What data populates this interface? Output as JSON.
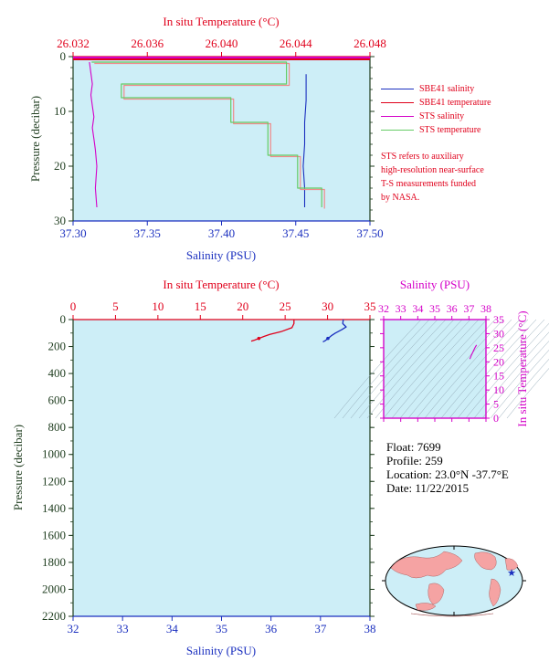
{
  "chart_data": [
    {
      "type": "line",
      "title": "",
      "top_axis_label": "In situ Temperature (°C)",
      "bottom_axis_label": "Salinity (PSU)",
      "ylabel": "Pressure (decibar)",
      "xlim_salinity": [
        37.3,
        37.5
      ],
      "xlim_temperature": [
        26.032,
        26.048
      ],
      "ylim": [
        30,
        0
      ],
      "y_reversed": true,
      "salinity_ticks": [
        "37.30",
        "37.35",
        "37.40",
        "37.45",
        "37.50"
      ],
      "temperature_ticks": [
        "26.032",
        "26.036",
        "26.040",
        "26.044",
        "26.048"
      ],
      "pressure_ticks": [
        "0",
        "10",
        "20",
        "30"
      ],
      "legend": [
        {
          "label": "SBE41 salinity",
          "color": "#1a2fbf"
        },
        {
          "label": "SBE41 temperature",
          "color": "#e0001b"
        },
        {
          "label": "STS salinity",
          "color": "#d400c8"
        },
        {
          "label": "STS temperature",
          "color": "#66cc66"
        }
      ],
      "note": [
        "STS refers to auxiliary",
        "high-resolution near-surface",
        "T-S measurements funded",
        "by NASA."
      ],
      "series": [
        {
          "name": "SBE41 salinity",
          "x": [
            37.457,
            37.457,
            37.456,
            37.456,
            37.455,
            37.456,
            37.456
          ],
          "y": [
            3.2,
            8,
            12,
            16,
            20,
            24,
            27.5
          ]
        },
        {
          "name": "SBE41 temperature",
          "x": [
            26.0447,
            26.0447,
            26.0447
          ],
          "y": [
            0,
            0.3,
            0.6
          ]
        },
        {
          "name": "STS salinity",
          "x": [
            37.311,
            37.312,
            37.313,
            37.312,
            37.313,
            37.314,
            37.313,
            37.314,
            37.315,
            37.316,
            37.315,
            37.316
          ],
          "y": [
            1,
            3,
            5,
            7,
            9,
            11,
            13,
            15,
            17,
            20,
            24,
            27.5
          ]
        },
        {
          "name": "STS temperature",
          "x": [
            26.033,
            26.0435,
            26.0435,
            26.0346,
            26.0346,
            26.0405,
            26.0405,
            26.0425,
            26.0425,
            26.0441,
            26.0441,
            26.0454,
            26.0454
          ],
          "y": [
            1,
            1,
            5,
            5,
            7.5,
            7.5,
            12,
            12,
            18,
            18,
            24,
            24,
            27.5
          ]
        }
      ]
    },
    {
      "type": "line",
      "top_axis_label": "In situ Temperature (°C)",
      "bottom_axis_label": "Salinity (PSU)",
      "ylabel": "Pressure (decibar)",
      "xlim_salinity": [
        32,
        38
      ],
      "xlim_temperature": [
        0,
        35
      ],
      "ylim": [
        2200,
        0
      ],
      "y_reversed": true,
      "salinity_ticks": [
        "32",
        "33",
        "34",
        "35",
        "36",
        "37",
        "38"
      ],
      "temperature_ticks": [
        "0",
        "5",
        "10",
        "15",
        "20",
        "25",
        "30",
        "35"
      ],
      "pressure_ticks": [
        "0",
        "200",
        "400",
        "600",
        "800",
        "1000",
        "1200",
        "1400",
        "1600",
        "1800",
        "2000",
        "2200"
      ],
      "series": [
        {
          "name": "Temperature",
          "x": [
            26.04,
            26.04,
            25.8,
            24.5,
            23.2,
            22.5,
            21.9,
            21.4,
            21.0
          ],
          "y": [
            0,
            30,
            60,
            90,
            110,
            125,
            140,
            152,
            160
          ]
        },
        {
          "name": "Salinity",
          "x": [
            37.46,
            37.45,
            37.52,
            37.43,
            37.3,
            37.22,
            37.15,
            37.1,
            37.05
          ],
          "y": [
            0,
            30,
            55,
            75,
            100,
            120,
            140,
            155,
            165
          ]
        }
      ]
    },
    {
      "type": "scatter",
      "xlabel": "Salinity (PSU)",
      "ylabel": "In situ Temperature (°C)",
      "xlim": [
        32,
        38
      ],
      "ylim": [
        0,
        35
      ],
      "x_ticks": [
        "32",
        "33",
        "34",
        "35",
        "36",
        "37",
        "38"
      ],
      "y_ticks": [
        "0",
        "5",
        "10",
        "15",
        "20",
        "25",
        "30",
        "35"
      ],
      "x": [
        37.05,
        37.15,
        37.25,
        37.35,
        37.45
      ],
      "y": [
        21.0,
        22.4,
        23.7,
        25.0,
        26.0
      ]
    }
  ],
  "float_info": {
    "float": "Float:  7699",
    "profile": "Profile:  259",
    "location": "Location:  23.0°N  -37.7°E",
    "date": "Date:  11/22/2015"
  },
  "colors": {
    "panel_bg": "#cdeef7",
    "temperature": "#e0001b",
    "salinity": "#1a2fbf",
    "pressure_axis": "#1f3d1f",
    "ts_axis": "#d400c8",
    "sts_temp": "#66cc66",
    "map_land": "#f5a3a3",
    "map_ocean": "#cdeef7"
  },
  "icons": {
    "map": "world-map-icon",
    "float_marker": "star-marker-icon"
  }
}
